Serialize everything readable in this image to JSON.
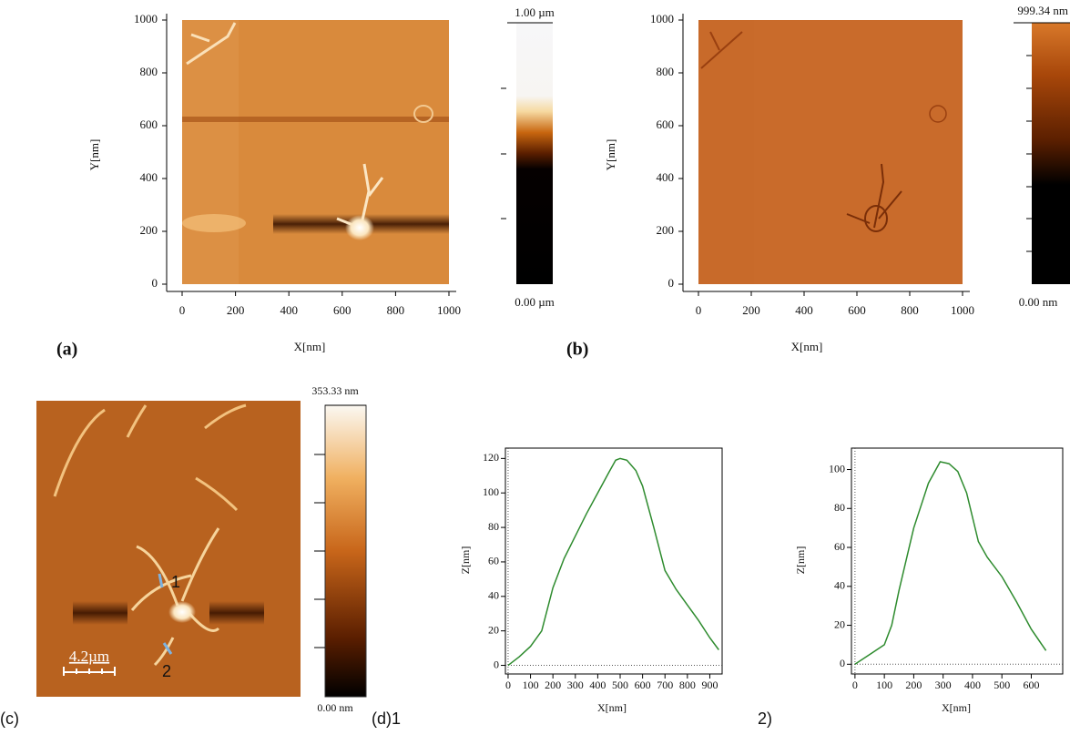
{
  "chart_data": [
    {
      "type": "image",
      "panel_label": "(a)",
      "xlabel": "X[nm]",
      "ylabel": "Y[nm]",
      "xlim": [
        0,
        1000
      ],
      "ylim": [
        0,
        1000
      ],
      "xticks": [
        0,
        200,
        400,
        600,
        800,
        1000
      ],
      "yticks": [
        0,
        200,
        400,
        600,
        800,
        1000
      ],
      "colorbar_max_label": "1.00 µm",
      "colorbar_min_label": "0.00 µm"
    },
    {
      "type": "image",
      "panel_label": "(b)",
      "xlabel": "X[nm]",
      "ylabel": "Y[nm]",
      "xlim": [
        0,
        1000
      ],
      "ylim": [
        0,
        1000
      ],
      "xticks": [
        0,
        200,
        400,
        600,
        800,
        1000
      ],
      "yticks": [
        0,
        200,
        400,
        600,
        800,
        1000
      ],
      "colorbar_max_label": "999.34 nm",
      "colorbar_min_label": "0.00 nm"
    },
    {
      "type": "image",
      "panel_label": "(c)",
      "scale_bar_label": "4.2µm",
      "markers": [
        "1",
        "2"
      ],
      "colorbar_max_label": "353.33 nm",
      "colorbar_min_label": "0.00 nm"
    },
    {
      "type": "line",
      "panel_label": "(d)1",
      "xlabel": "X[nm]",
      "ylabel": "Z[nm]",
      "xlim": [
        -12,
        955
      ],
      "ylim": [
        -5,
        126
      ],
      "xticks": [
        0,
        100,
        200,
        300,
        400,
        500,
        600,
        700,
        800,
        900
      ],
      "yticks": [
        0,
        20,
        40,
        60,
        80,
        100,
        120
      ],
      "color": "#2e8b2e",
      "x": [
        0,
        50,
        100,
        150,
        200,
        250,
        300,
        350,
        400,
        450,
        480,
        500,
        530,
        570,
        600,
        650,
        700,
        750,
        800,
        850,
        900,
        940
      ],
      "values": [
        0,
        5,
        11,
        20,
        45,
        62,
        75,
        88,
        100,
        112,
        119,
        120,
        119,
        113,
        104,
        80,
        55,
        44,
        35,
        26,
        16,
        9
      ]
    },
    {
      "type": "line",
      "panel_label": "2)",
      "xlabel": "X[nm]",
      "ylabel": "Z[nm]",
      "xlim": [
        -12,
        707
      ],
      "ylim": [
        -5,
        111
      ],
      "xticks": [
        0,
        100,
        200,
        300,
        400,
        500,
        600
      ],
      "yticks": [
        0,
        20,
        40,
        60,
        80,
        100
      ],
      "color": "#2e8b2e",
      "x": [
        0,
        50,
        100,
        125,
        150,
        200,
        250,
        290,
        320,
        350,
        380,
        420,
        450,
        500,
        550,
        600,
        650
      ],
      "values": [
        0,
        5,
        10,
        20,
        38,
        70,
        93,
        104,
        103,
        99,
        88,
        63,
        55,
        45,
        32,
        18,
        7
      ]
    }
  ]
}
